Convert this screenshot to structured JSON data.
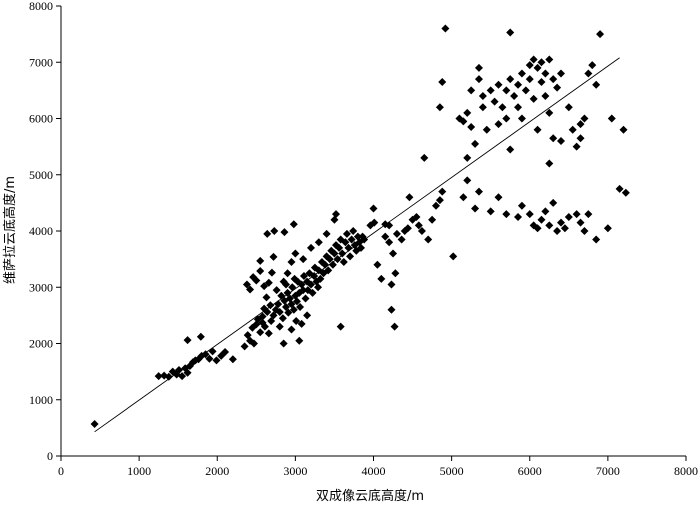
{
  "chart_data": {
    "type": "scatter",
    "title": "",
    "xlabel": "双成像云底高度/m",
    "ylabel": "维萨拉云底高度/m",
    "xlim": [
      0,
      8000
    ],
    "ylim": [
      0,
      8000
    ],
    "xticks": [
      "0",
      "1000",
      "2000",
      "3000",
      "4000",
      "5000",
      "6000",
      "7000",
      "8000"
    ],
    "yticks": [
      "0",
      "1000",
      "2000",
      "3000",
      "4000",
      "5000",
      "6000",
      "7000",
      "8000"
    ],
    "grid": false,
    "legend": "none",
    "marker": "diamond",
    "marker_color": "#000000",
    "trendline": {
      "x": [
        430,
        7150
      ],
      "y": [
        430,
        7080
      ]
    },
    "series": [
      {
        "points": [
          [
            430,
            570
          ],
          [
            1250,
            1420
          ],
          [
            1320,
            1430
          ],
          [
            1380,
            1410
          ],
          [
            1430,
            1500
          ],
          [
            1480,
            1450
          ],
          [
            1510,
            1530
          ],
          [
            1550,
            1420
          ],
          [
            1590,
            1560
          ],
          [
            1620,
            1480
          ],
          [
            1650,
            1600
          ],
          [
            1690,
            1670
          ],
          [
            1720,
            1700
          ],
          [
            1760,
            1720
          ],
          [
            1800,
            1780
          ],
          [
            1850,
            1810
          ],
          [
            1900,
            1730
          ],
          [
            1940,
            1860
          ],
          [
            1990,
            1700
          ],
          [
            2050,
            1780
          ],
          [
            2100,
            1850
          ],
          [
            2200,
            1720
          ],
          [
            1620,
            2060
          ],
          [
            1790,
            2120
          ],
          [
            2350,
            1950
          ],
          [
            2390,
            2150
          ],
          [
            2420,
            2050
          ],
          [
            2450,
            2280
          ],
          [
            2500,
            2340
          ],
          [
            2520,
            2430
          ],
          [
            2550,
            2200
          ],
          [
            2580,
            2480
          ],
          [
            2610,
            2300
          ],
          [
            2640,
            2560
          ],
          [
            2660,
            2180
          ],
          [
            2690,
            2400
          ],
          [
            2720,
            2500
          ],
          [
            2580,
            2370
          ],
          [
            2470,
            2000
          ],
          [
            2380,
            3050
          ],
          [
            2420,
            2960
          ],
          [
            2460,
            3180
          ],
          [
            2500,
            3120
          ],
          [
            2550,
            3290
          ],
          [
            2600,
            3020
          ],
          [
            2630,
            2820
          ],
          [
            2660,
            3080
          ],
          [
            2550,
            3470
          ],
          [
            2700,
            3260
          ],
          [
            2720,
            3540
          ],
          [
            2640,
            3950
          ],
          [
            2730,
            4000
          ],
          [
            2860,
            3980
          ],
          [
            2980,
            4120
          ],
          [
            2600,
            2620
          ],
          [
            2680,
            2680
          ],
          [
            2750,
            2600
          ],
          [
            2780,
            2700
          ],
          [
            2800,
            2560
          ],
          [
            2820,
            2850
          ],
          [
            2840,
            2450
          ],
          [
            2860,
            2760
          ],
          [
            2880,
            2650
          ],
          [
            2900,
            2900
          ],
          [
            2910,
            2550
          ],
          [
            2930,
            2800
          ],
          [
            2950,
            2700
          ],
          [
            2960,
            3000
          ],
          [
            2980,
            2600
          ],
          [
            3000,
            2850
          ],
          [
            3020,
            2750
          ],
          [
            3030,
            3100
          ],
          [
            3050,
            2900
          ],
          [
            3060,
            2650
          ],
          [
            3080,
            3050
          ],
          [
            3100,
            2950
          ],
          [
            3110,
            3200
          ],
          [
            3130,
            2800
          ],
          [
            3150,
            3100
          ],
          [
            3160,
            2950
          ],
          [
            3180,
            3250
          ],
          [
            3200,
            3050
          ],
          [
            3220,
            2900
          ],
          [
            3240,
            3200
          ],
          [
            3250,
            3350
          ],
          [
            3270,
            3100
          ],
          [
            3290,
            3000
          ],
          [
            3300,
            3300
          ],
          [
            3320,
            3150
          ],
          [
            3340,
            3450
          ],
          [
            3360,
            3250
          ],
          [
            3380,
            3400
          ],
          [
            3400,
            3550
          ],
          [
            3420,
            3300
          ],
          [
            3440,
            3500
          ],
          [
            3460,
            3650
          ],
          [
            3480,
            3400
          ],
          [
            3500,
            3600
          ],
          [
            3520,
            3750
          ],
          [
            3540,
            3500
          ],
          [
            3560,
            3700
          ],
          [
            3580,
            3850
          ],
          [
            3600,
            3600
          ],
          [
            3620,
            3450
          ],
          [
            3640,
            3800
          ],
          [
            3660,
            3950
          ],
          [
            3680,
            3700
          ],
          [
            3700,
            3550
          ],
          [
            3720,
            3850
          ],
          [
            3740,
            4000
          ],
          [
            3760,
            3750
          ],
          [
            3780,
            3650
          ],
          [
            3800,
            3900
          ],
          [
            3820,
            3800
          ],
          [
            3840,
            3700
          ],
          [
            3860,
            3900
          ],
          [
            3880,
            3850
          ],
          [
            2850,
            3100
          ],
          [
            2900,
            3250
          ],
          [
            2950,
            3450
          ],
          [
            3000,
            3600
          ],
          [
            3100,
            3500
          ],
          [
            3200,
            3700
          ],
          [
            3300,
            3800
          ],
          [
            3400,
            3950
          ],
          [
            3500,
            4200
          ],
          [
            3520,
            4300
          ],
          [
            2800,
            2300
          ],
          [
            2850,
            2000
          ],
          [
            3050,
            2050
          ],
          [
            3080,
            2350
          ],
          [
            2950,
            2250
          ],
          [
            3150,
            2500
          ],
          [
            2760,
            2950
          ],
          [
            2880,
            3050
          ],
          [
            2990,
            3150
          ],
          [
            3010,
            2400
          ],
          [
            3580,
            2300
          ],
          [
            3960,
            4100
          ],
          [
            4010,
            4150
          ],
          [
            4050,
            3400
          ],
          [
            4100,
            3150
          ],
          [
            4150,
            3900
          ],
          [
            4200,
            3800
          ],
          [
            4230,
            2600
          ],
          [
            4250,
            3600
          ],
          [
            4270,
            2300
          ],
          [
            4280,
            3250
          ],
          [
            4300,
            3950
          ],
          [
            4360,
            3850
          ],
          [
            4400,
            4000
          ],
          [
            4440,
            4050
          ],
          [
            4460,
            4600
          ],
          [
            4500,
            4200
          ],
          [
            4550,
            4250
          ],
          [
            4580,
            4100
          ],
          [
            4620,
            4000
          ],
          [
            4650,
            5300
          ],
          [
            4700,
            3850
          ],
          [
            4750,
            4200
          ],
          [
            4800,
            4450
          ],
          [
            4850,
            4550
          ],
          [
            4880,
            4700
          ],
          [
            5020,
            3550
          ],
          [
            4200,
            4100
          ],
          [
            4230,
            3050
          ],
          [
            4000,
            4400
          ],
          [
            4150,
            4120
          ],
          [
            5150,
            4600
          ],
          [
            5200,
            4900
          ],
          [
            5300,
            4400
          ],
          [
            5350,
            4700
          ],
          [
            5500,
            4350
          ],
          [
            5600,
            4600
          ],
          [
            5700,
            4300
          ],
          [
            5850,
            4250
          ],
          [
            5900,
            4450
          ],
          [
            6000,
            4300
          ],
          [
            6050,
            4100
          ],
          [
            6100,
            4050
          ],
          [
            6150,
            4200
          ],
          [
            6200,
            4350
          ],
          [
            6250,
            4100
          ],
          [
            6300,
            4500
          ],
          [
            6350,
            4000
          ],
          [
            6400,
            4150
          ],
          [
            6450,
            4050
          ],
          [
            6500,
            4250
          ],
          [
            6600,
            4300
          ],
          [
            6650,
            4150
          ],
          [
            6700,
            4000
          ],
          [
            6750,
            4300
          ],
          [
            6850,
            3850
          ],
          [
            7000,
            4050
          ],
          [
            7150,
            4750
          ],
          [
            7230,
            4680
          ],
          [
            4880,
            6650
          ],
          [
            4850,
            6200
          ],
          [
            5100,
            6000
          ],
          [
            5150,
            5950
          ],
          [
            5200,
            6100
          ],
          [
            5250,
            6500
          ],
          [
            5250,
            5850
          ],
          [
            5300,
            5550
          ],
          [
            5350,
            6700
          ],
          [
            5350,
            6900
          ],
          [
            5400,
            6400
          ],
          [
            5400,
            6200
          ],
          [
            5450,
            5800
          ],
          [
            5500,
            6500
          ],
          [
            5550,
            6300
          ],
          [
            5600,
            6600
          ],
          [
            5600,
            5900
          ],
          [
            5650,
            6200
          ],
          [
            5700,
            6500
          ],
          [
            5700,
            6000
          ],
          [
            5750,
            6700
          ],
          [
            5750,
            5450
          ],
          [
            5800,
            6400
          ],
          [
            5850,
            6200
          ],
          [
            5850,
            6600
          ],
          [
            5900,
            6800
          ],
          [
            5900,
            6000
          ],
          [
            5950,
            6500
          ],
          [
            6000,
            6950
          ],
          [
            6000,
            6700
          ],
          [
            6050,
            7050
          ],
          [
            6050,
            6350
          ],
          [
            6100,
            6900
          ],
          [
            6100,
            5800
          ],
          [
            6150,
            6650
          ],
          [
            6150,
            7000
          ],
          [
            6200,
            6400
          ],
          [
            6200,
            6800
          ],
          [
            6250,
            7050
          ],
          [
            6250,
            6100
          ],
          [
            6300,
            6700
          ],
          [
            6300,
            5650
          ],
          [
            6350,
            6550
          ],
          [
            6400,
            6800
          ],
          [
            6500,
            6200
          ],
          [
            6550,
            5800
          ],
          [
            6600,
            5500
          ],
          [
            6650,
            5900
          ],
          [
            6700,
            6000
          ],
          [
            6750,
            6800
          ],
          [
            6800,
            6950
          ],
          [
            6850,
            6600
          ],
          [
            6900,
            7500
          ],
          [
            7050,
            6000
          ],
          [
            7200,
            5800
          ],
          [
            4920,
            7600
          ],
          [
            5750,
            7530
          ],
          [
            6250,
            5200
          ],
          [
            6400,
            5600
          ],
          [
            6650,
            5650
          ],
          [
            5200,
            5300
          ]
        ]
      }
    ]
  }
}
